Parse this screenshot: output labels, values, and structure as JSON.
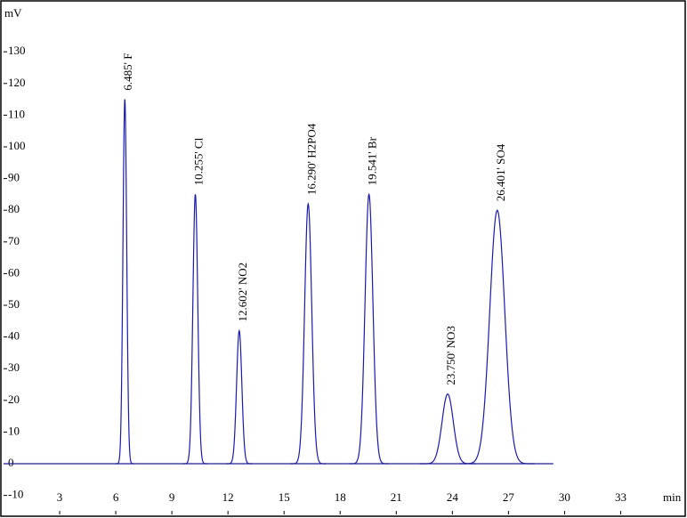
{
  "chart_data": {
    "type": "chromatogram",
    "y_label": "mV",
    "x_label": "min",
    "xlim": [
      0,
      36.5
    ],
    "ylim": [
      -16,
      145.5
    ],
    "xticks": [
      3,
      6,
      9,
      12,
      15,
      18,
      21,
      24,
      27,
      30,
      33
    ],
    "yticks": [
      -10,
      0,
      10,
      20,
      30,
      40,
      50,
      60,
      70,
      80,
      90,
      100,
      110,
      120,
      130
    ],
    "color": "#1a1ab0",
    "peaks": [
      {
        "label": "6.485'  F",
        "x": 6.485,
        "height": 115,
        "width": 0.1
      },
      {
        "label": "10.255'  Cl",
        "x": 10.255,
        "height": 85,
        "width": 0.13
      },
      {
        "label": "12.602'  NO2",
        "x": 12.602,
        "height": 42,
        "width": 0.14
      },
      {
        "label": "16.290'  H2PO4",
        "x": 16.29,
        "height": 82,
        "width": 0.19
      },
      {
        "label": "19.541'  Br",
        "x": 19.541,
        "height": 85,
        "width": 0.21
      },
      {
        "label": "23.750'  NO3",
        "x": 23.75,
        "height": 22,
        "width": 0.3
      },
      {
        "label": "26.401'  SO4",
        "x": 26.401,
        "height": 80,
        "width": 0.4
      }
    ]
  }
}
